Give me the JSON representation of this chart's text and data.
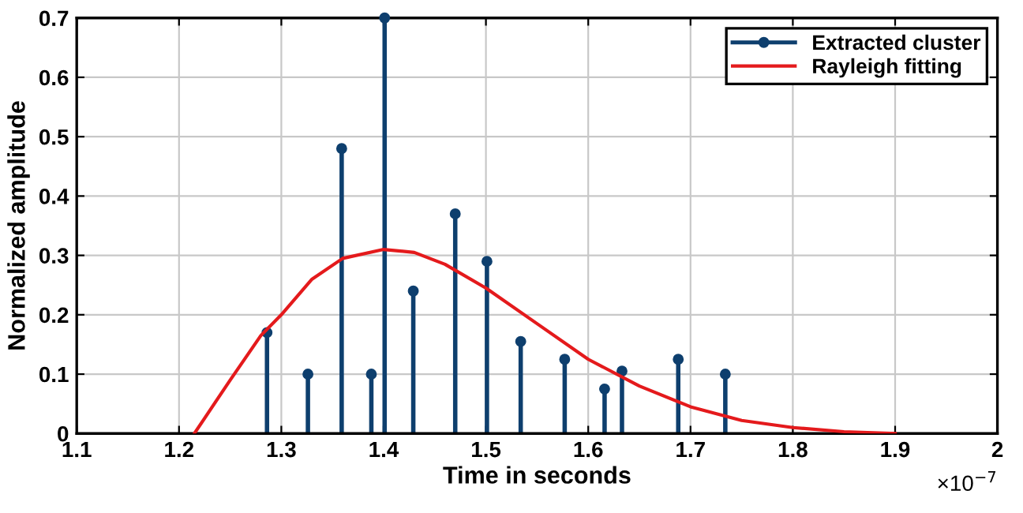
{
  "chart_data": {
    "type": "lollipop",
    "xlabel": "Time in seconds",
    "ylabel": "Normalized amplitude",
    "xlim": [
      1.1,
      2
    ],
    "xticks": [
      1.1,
      1.2,
      1.3,
      1.4,
      1.5,
      1.6,
      1.7,
      1.8,
      1.9,
      2
    ],
    "ylim": [
      0,
      0.7
    ],
    "yticks": [
      0,
      0.1,
      0.2,
      0.3,
      0.4,
      0.5,
      0.6,
      0.7
    ],
    "grid": true,
    "legend": "top right",
    "annotations": [
      "×10$^{−7}$"
    ],
    "series": [
      {
        "name": "Extracted cluster",
        "marker": "circle",
        "color": "#0e3f6e",
        "x": [
          1.286,
          1.326,
          1.359,
          1.388,
          1.401,
          1.429,
          1.47,
          1.501,
          1.534,
          1.577,
          1.616,
          1.633,
          1.688,
          1.734
        ],
        "values": [
          0.17,
          0.1,
          0.48,
          0.1,
          0.7,
          0.24,
          0.37,
          0.29,
          0.155,
          0.125,
          0.075,
          0.105,
          0.125,
          0.1
        ]
      },
      {
        "name": "Rayleigh fitting",
        "type": "line",
        "color": "#e41a1c",
        "x": [
          1.215,
          1.25,
          1.28,
          1.3,
          1.33,
          1.36,
          1.4,
          1.43,
          1.46,
          1.5,
          1.55,
          1.6,
          1.65,
          1.7,
          1.75,
          1.8,
          1.85,
          1.9
        ],
        "values": [
          0,
          0.09,
          0.165,
          0.2,
          0.26,
          0.295,
          0.31,
          0.305,
          0.285,
          0.245,
          0.185,
          0.125,
          0.08,
          0.045,
          0.022,
          0.01,
          0.003,
          0
        ]
      }
    ]
  }
}
